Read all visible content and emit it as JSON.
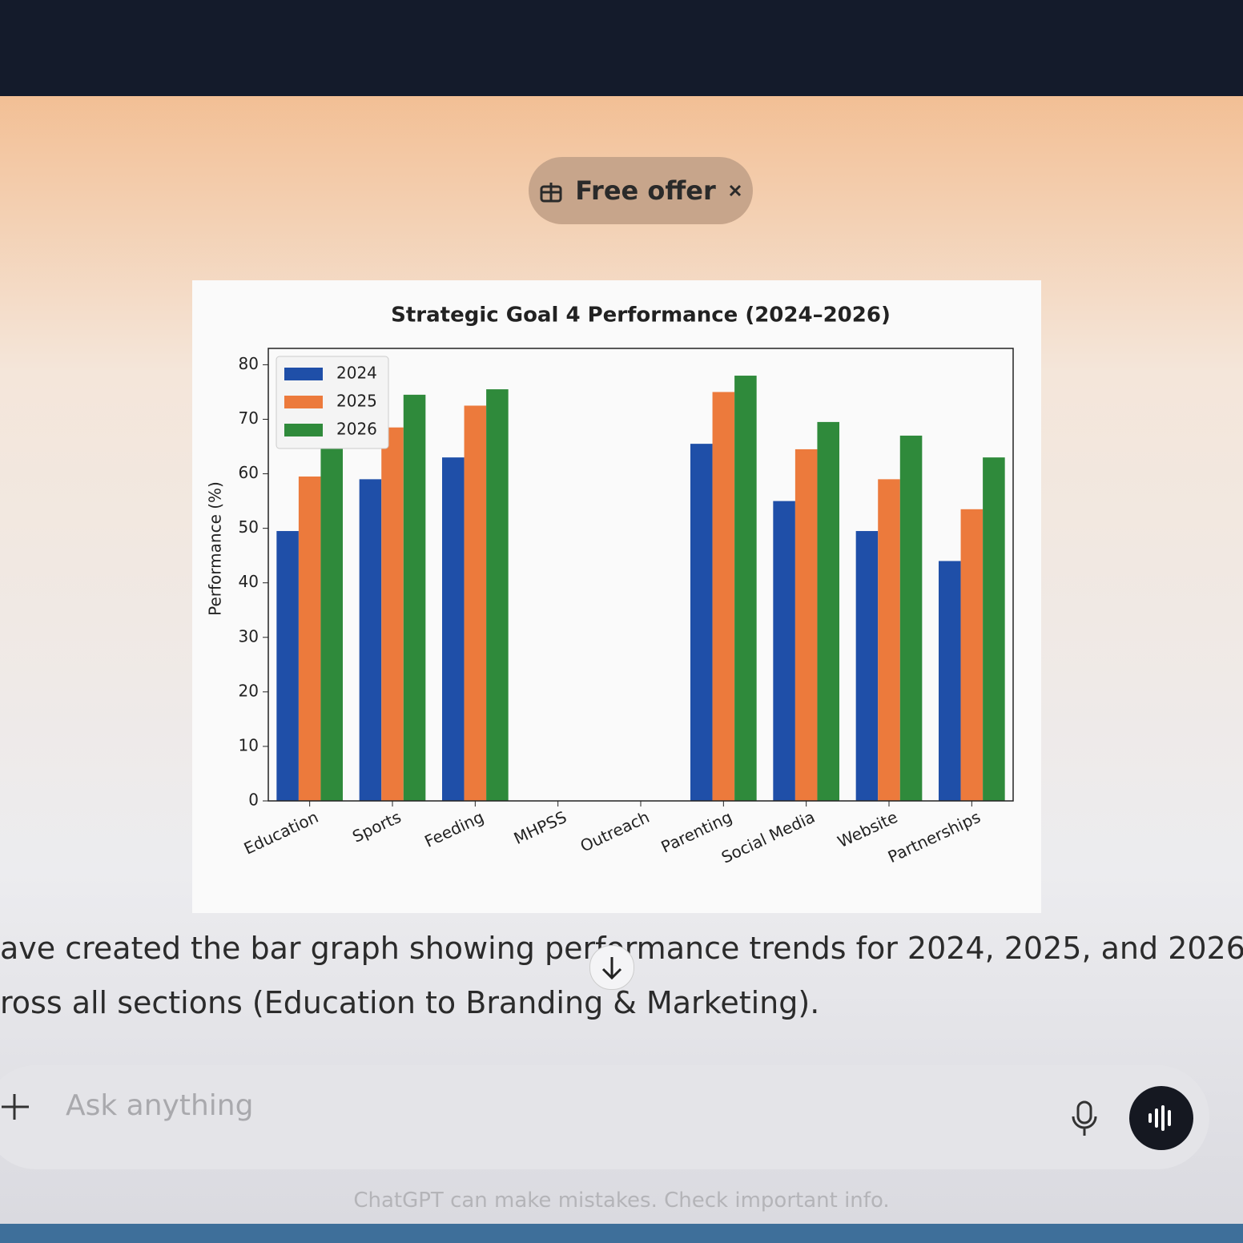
{
  "header": {
    "badge": "Free offer"
  },
  "chart_data": {
    "type": "bar",
    "title": "Strategic Goal 4 Performance (2024–2026)",
    "y_label": "Performance (%)",
    "categories": [
      "Education",
      "Sports",
      "Feeding",
      "MHPSS",
      "Outreach",
      "Parenting",
      "Social Media",
      "Website",
      "Partnerships"
    ],
    "series": [
      {
        "name": "2024",
        "color": "#1f4fa8",
        "values": [
          49.5,
          59,
          63,
          null,
          null,
          65.5,
          55,
          49.5,
          44
        ]
      },
      {
        "name": "2025",
        "color": "#ec7a3c",
        "values": [
          59.5,
          68.5,
          72.5,
          null,
          null,
          75,
          64.5,
          59,
          53.5
        ]
      },
      {
        "name": "2026",
        "color": "#2f8a3b",
        "values": [
          66.5,
          74.5,
          75.5,
          null,
          null,
          78,
          69.5,
          67,
          63
        ]
      }
    ],
    "ylim": [
      0,
      83
    ],
    "yticks": [
      0,
      10,
      20,
      30,
      40,
      50,
      60,
      70,
      80
    ],
    "legend": "upper left",
    "grid": false
  },
  "message": {
    "lines": [
      "ave created the bar graph showing performance trends for 2024, 2025, and 2026",
      "ross all sections (Education to Branding & Marketing)."
    ]
  },
  "composer": {
    "placeholder": "Ask anything"
  },
  "footer": {
    "disclaimer": "ChatGPT can make mistakes. Check important info."
  }
}
